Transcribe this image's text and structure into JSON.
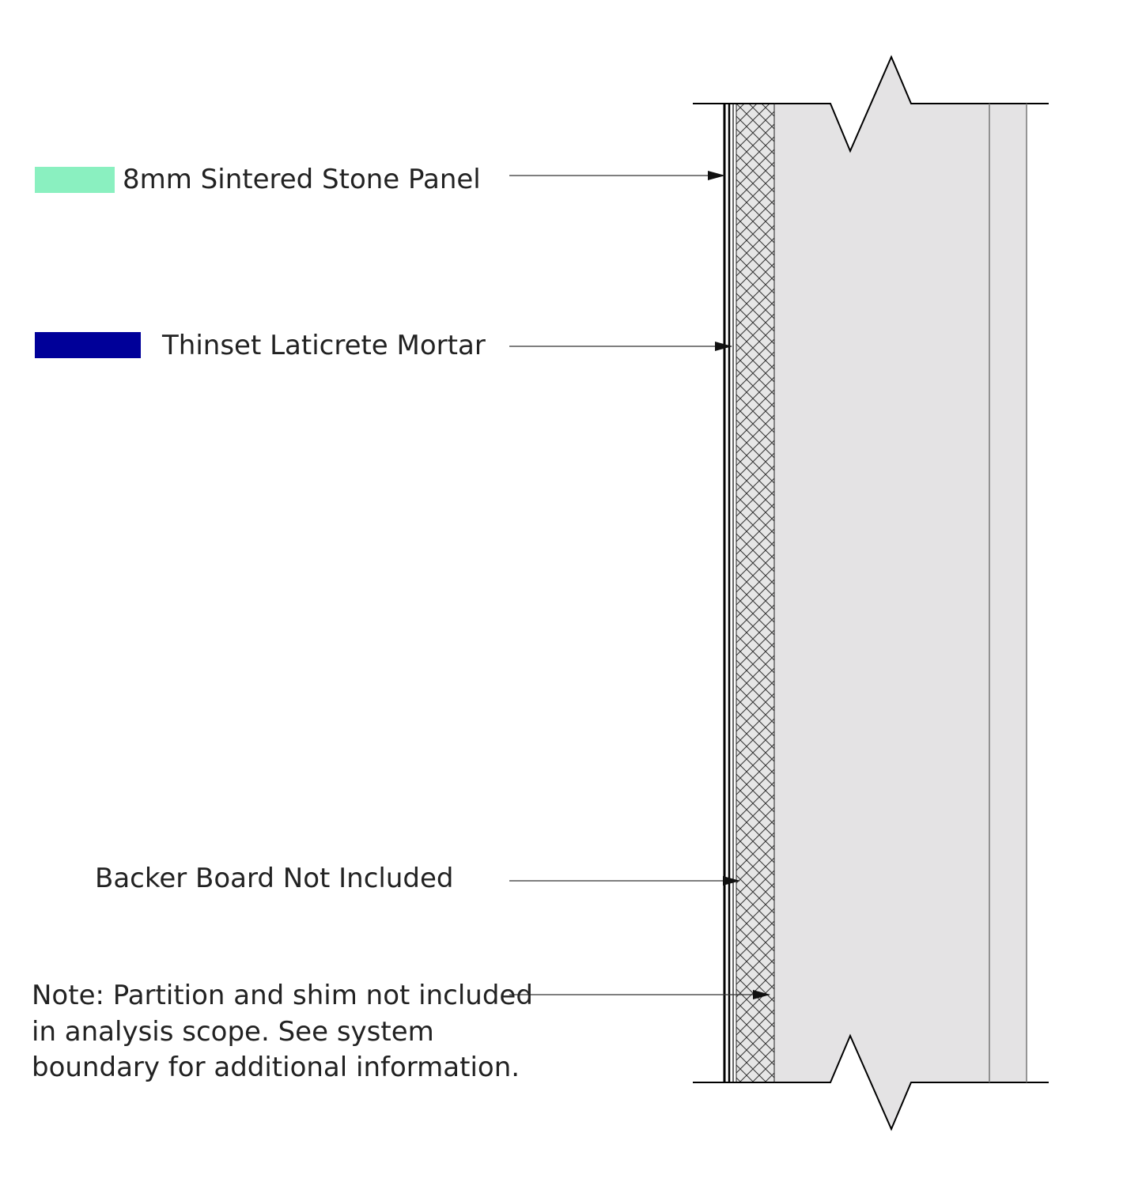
{
  "legend": [
    {
      "label": "8mm Sintered Stone Panel",
      "color": "#8af0c0"
    },
    {
      "label": "Thinset Laticrete Mortar",
      "color": "#000099"
    }
  ],
  "callouts": {
    "backer": "Backer Board Not Included"
  },
  "note": {
    "lines": [
      "Note: Partition and shim not included",
      "in analysis scope. See system",
      "boundary for additional information."
    ]
  },
  "colors": {
    "wall_fill": "#e4e3e4",
    "hatch_fill": "#e6e6e6",
    "line": "#000000"
  }
}
